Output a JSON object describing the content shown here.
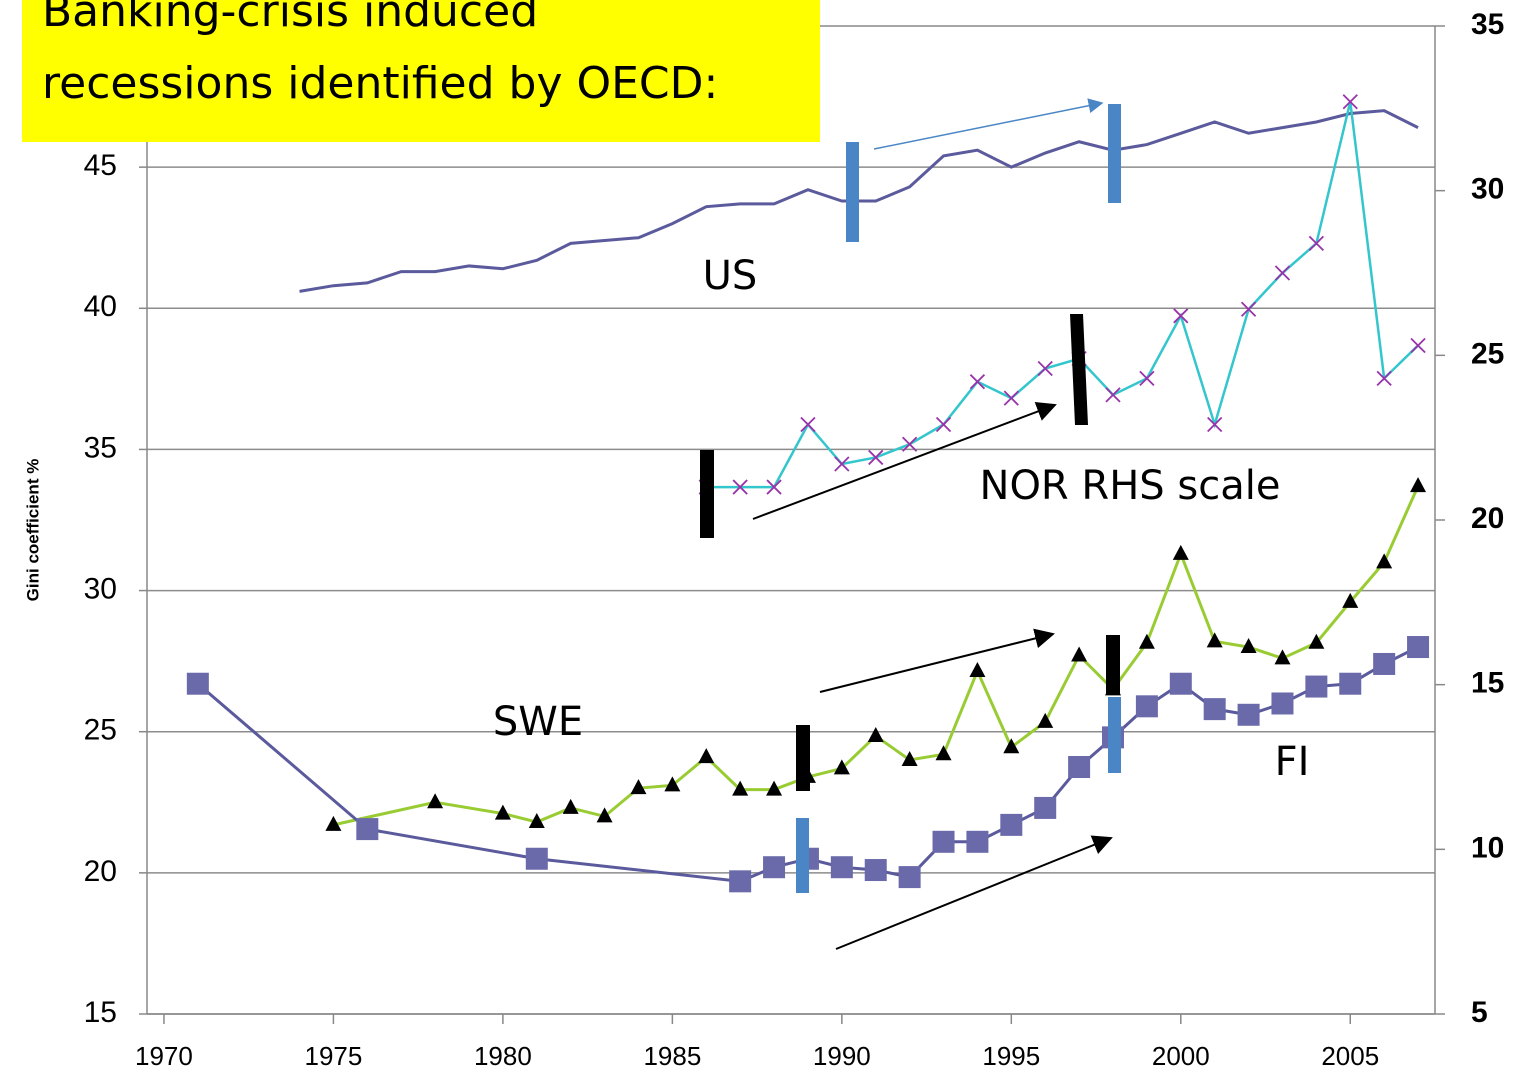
{
  "chart_data": {
    "type": "line",
    "y_label": "Gini coefficient %",
    "note_box": [
      "Banking-crisis induced",
      "recessions identified by OECD:"
    ],
    "xlim": [
      1969.5,
      2007.5
    ],
    "xticks": [
      1970,
      1975,
      1980,
      1985,
      1990,
      1995,
      2000,
      2005
    ],
    "ylim": [
      15,
      50
    ],
    "yticks": [
      15,
      20,
      25,
      30,
      35,
      40,
      45
    ],
    "y2lim": [
      5,
      35
    ],
    "y2ticks": [
      5,
      10,
      15,
      20,
      25,
      30,
      35
    ],
    "grid": true,
    "series": [
      {
        "name": "US",
        "color": "#5a5a9c",
        "marker": "none",
        "axis": "y",
        "x": [
          1974,
          1975,
          1976,
          1977,
          1978,
          1979,
          1980,
          1981,
          1982,
          1983,
          1984,
          1985,
          1986,
          1987,
          1988,
          1989,
          1990,
          1991,
          1992,
          1993,
          1994,
          1995,
          1996,
          1997,
          1998,
          1999,
          2000,
          2001,
          2002,
          2003,
          2004,
          2005,
          2006,
          2007
        ],
        "values": [
          40.6,
          40.8,
          40.9,
          41.3,
          41.3,
          41.5,
          41.4,
          41.7,
          42.3,
          42.4,
          42.5,
          43.0,
          43.6,
          43.7,
          43.7,
          44.2,
          43.8,
          43.8,
          44.3,
          45.4,
          45.6,
          45.0,
          45.5,
          45.9,
          45.6,
          45.8,
          46.2,
          46.6,
          46.2,
          46.4,
          46.6,
          46.9,
          47.0,
          46.4
        ]
      },
      {
        "name": "NOR RHS scale",
        "color": "#33c6cc",
        "marker": "x",
        "marker_color": "#9933aa",
        "axis": "y2",
        "x": [
          1986,
          1987,
          1988,
          1989,
          1990,
          1991,
          1992,
          1993,
          1994,
          1995,
          1996,
          1997,
          1998,
          1999,
          2000,
          2001,
          2002,
          2003,
          2004,
          2005,
          2006,
          2007
        ],
        "values": [
          21.0,
          21.0,
          21.0,
          22.9,
          21.7,
          21.9,
          22.3,
          22.9,
          24.2,
          23.7,
          24.6,
          24.9,
          23.8,
          24.3,
          26.2,
          22.9,
          26.4,
          27.5,
          28.4,
          32.7,
          24.3,
          25.3
        ]
      },
      {
        "name": "SWE",
        "color": "#99cc33",
        "marker": "triangle",
        "marker_color": "#000000",
        "axis": "y",
        "x": [
          1975,
          1978,
          1980,
          1981,
          1982,
          1983,
          1984,
          1985,
          1986,
          1987,
          1988,
          1989,
          1990,
          1991,
          1992,
          1993,
          1994,
          1995,
          1996,
          1997,
          1998,
          1999,
          2000,
          2001,
          2002,
          2003,
          2004,
          2005,
          2006,
          2007
        ],
        "values": [
          21.7,
          22.5,
          22.1,
          21.8,
          22.3,
          22.0,
          23.0,
          23.1,
          24.1,
          22.95,
          22.95,
          23.4,
          23.7,
          24.85,
          24.0,
          24.2,
          27.15,
          24.45,
          25.35,
          27.7,
          26.5,
          28.15,
          31.3,
          28.2,
          28.0,
          27.6,
          28.15,
          29.6,
          31.0,
          33.7
        ]
      },
      {
        "name": "FI",
        "color": "#5a5a9c",
        "marker": "square",
        "marker_color": "#6a6aaa",
        "axis": "y",
        "x": [
          1971,
          1976,
          1981,
          1987,
          1988,
          1989,
          1990,
          1991,
          1992,
          1993,
          1994,
          1995,
          1996,
          1997,
          1998,
          1999,
          2000,
          2001,
          2002,
          2003,
          2004,
          2005,
          2006,
          2007
        ],
        "values": [
          26.7,
          21.55,
          20.5,
          19.7,
          20.2,
          20.5,
          20.2,
          20.1,
          19.85,
          21.1,
          21.1,
          21.7,
          22.3,
          23.75,
          24.8,
          25.9,
          26.7,
          25.8,
          25.6,
          26.0,
          26.6,
          26.7,
          27.4,
          28.0
        ]
      }
    ]
  }
}
